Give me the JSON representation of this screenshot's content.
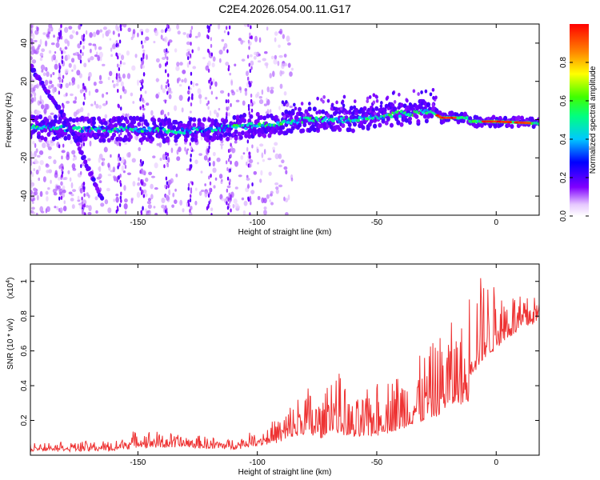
{
  "title": "C2E4.2026.054.00.11.G17",
  "chart_data": [
    {
      "type": "heatmap",
      "xlabel": "Height of straight line (km)",
      "ylabel": "Frequency (Hz)",
      "xlim": [
        -195,
        18
      ],
      "ylim": [
        -50,
        50
      ],
      "xticks": [
        -150,
        -100,
        -50,
        0
      ],
      "yticks": [
        -40,
        -20,
        0,
        20,
        40
      ],
      "colorbar": {
        "label": "Normalized spectral amplitude",
        "range": [
          0,
          1
        ],
        "ticks": [
          0.0,
          0.2,
          0.4,
          0.6,
          0.8
        ]
      },
      "main_trace": {
        "x": [
          -195,
          -170,
          -150,
          -130,
          -110,
          -100,
          -90,
          -80,
          -70,
          -60,
          -50,
          -40,
          -30,
          -27,
          -23,
          -12,
          -11,
          0,
          18
        ],
        "freq": [
          -4,
          -5,
          -5,
          -6,
          -4,
          -3,
          -2,
          0,
          0,
          0,
          1,
          3,
          4,
          4,
          1,
          1,
          -1,
          -1,
          -2
        ]
      },
      "diagonal_trace": {
        "x": [
          -195,
          -188,
          -180,
          -172,
          -165
        ],
        "freq": [
          28,
          15,
          0,
          -22,
          -42
        ]
      }
    },
    {
      "type": "line",
      "xlabel": "Height of straight line (km)",
      "ylabel": "SNR (10 * v/v)",
      "y_multiplier_label": "(x10",
      "y_multiplier_exp": "4",
      "y_multiplier_close": ")",
      "xlim": [
        -195,
        18
      ],
      "ylim": [
        0,
        1.1
      ],
      "xticks": [
        -150,
        -100,
        -50,
        0
      ],
      "yticks": [
        0.2,
        0.4,
        0.6,
        0.8,
        1
      ],
      "envelope": {
        "x": [
          -195,
          -160,
          -150,
          -140,
          -110,
          -100,
          -90,
          -80,
          -72,
          -70,
          -60,
          -50,
          -40,
          -30,
          -25,
          -20,
          -15,
          -12,
          -11,
          -5,
          0,
          5,
          10,
          18
        ],
        "base": [
          0.03,
          0.03,
          0.05,
          0.05,
          0.04,
          0.06,
          0.08,
          0.12,
          0.1,
          0.15,
          0.1,
          0.12,
          0.15,
          0.2,
          0.22,
          0.28,
          0.3,
          0.25,
          0.45,
          0.55,
          0.62,
          0.68,
          0.72,
          0.78
        ],
        "amp": [
          0.04,
          0.05,
          0.1,
          0.08,
          0.05,
          0.08,
          0.15,
          0.3,
          0.2,
          0.45,
          0.2,
          0.3,
          0.35,
          0.4,
          0.45,
          0.5,
          0.45,
          0.6,
          0.6,
          0.5,
          0.35,
          0.3,
          0.2,
          0.15
        ]
      },
      "color": "#ee3333"
    }
  ]
}
